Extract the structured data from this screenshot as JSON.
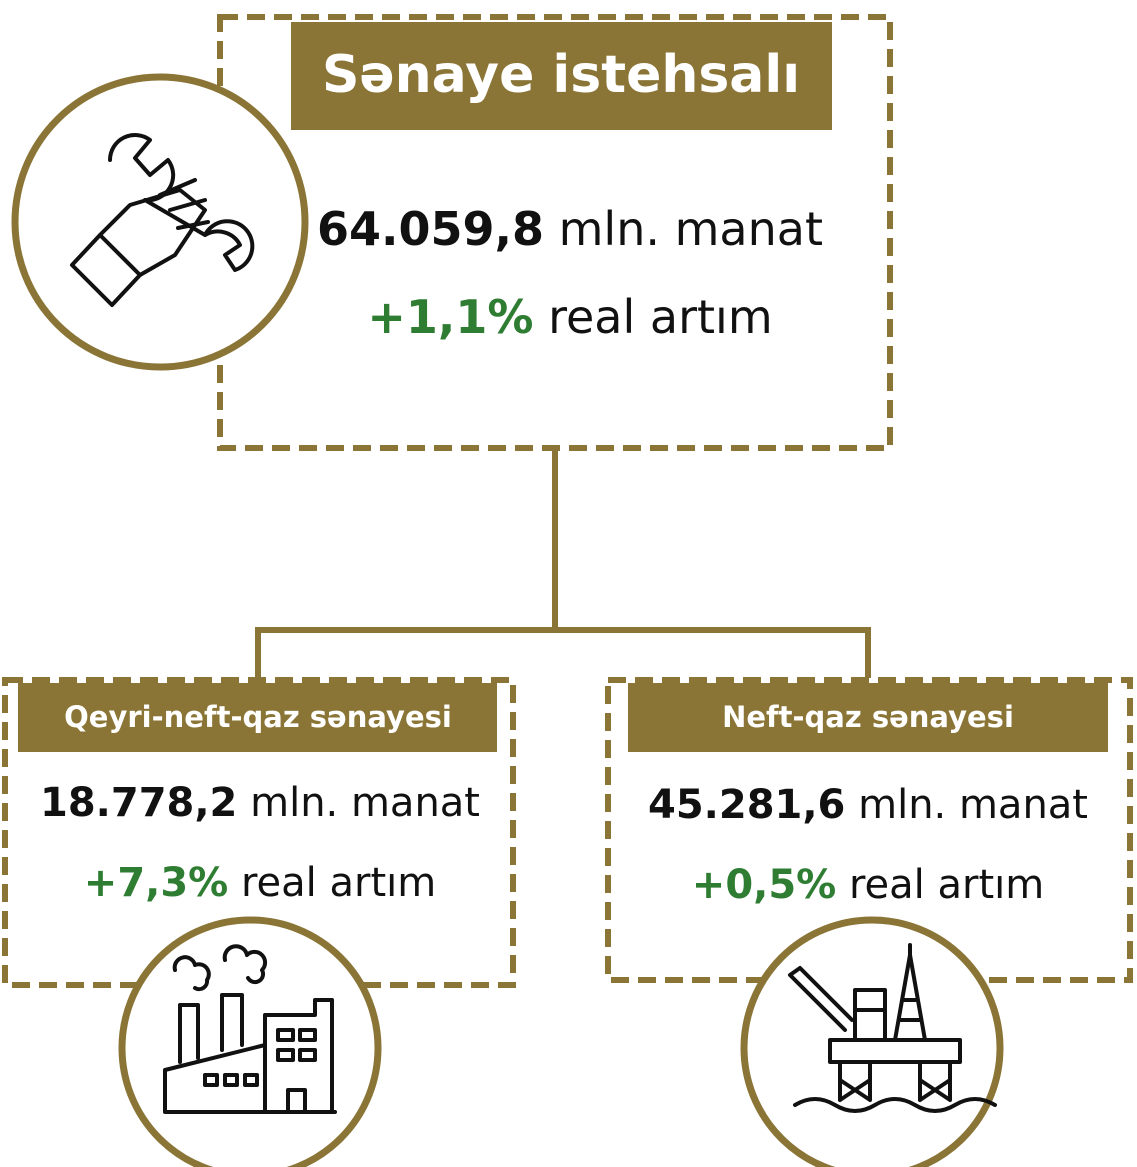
{
  "main": {
    "title": "Sənaye istehsalı",
    "value": "64.059,8",
    "unit": "mln. manat",
    "growth": "+1,1%",
    "growth_label": "real artım"
  },
  "branches": [
    {
      "title": "Qeyri-neft-qaz sənayesi",
      "value": "18.778,2",
      "unit": "mln. manat",
      "growth": "+7,3%",
      "growth_label": "real artım"
    },
    {
      "title": "Neft-qaz sənayesi",
      "value": "45.281,6",
      "unit": "mln. manat",
      "growth": "+0,5%",
      "growth_label": "real artım"
    }
  ]
}
